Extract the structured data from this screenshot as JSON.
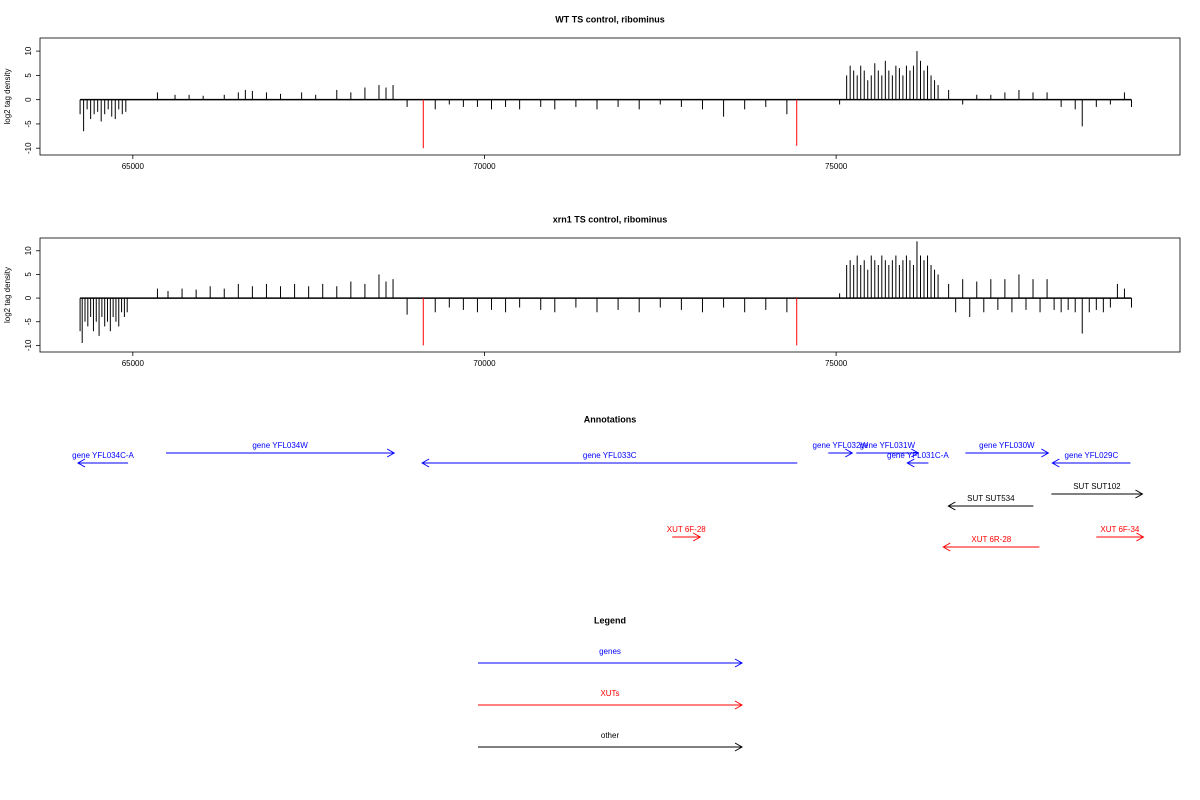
{
  "chart_data": [
    {
      "type": "spike",
      "title": "WT TS control, ribominus",
      "ylabel": "log2 tag density",
      "xlim": [
        63680,
        79890
      ],
      "ylim": [
        -11.4,
        12.7
      ],
      "xticks": [
        65000,
        70000,
        75000
      ],
      "yticks": [
        -10,
        -5,
        0,
        5,
        10
      ],
      "series": [
        {
          "color": "#000000",
          "x": [
            64250,
            64300,
            64350,
            64400,
            64450,
            64500,
            64550,
            64600,
            64650,
            64700,
            64750,
            64800,
            64850,
            64900,
            65350,
            65600,
            65800,
            66000,
            66300,
            66500,
            66600,
            66700,
            66900,
            67100,
            67400,
            67600,
            67900,
            68100,
            68300,
            68500,
            68600,
            68700,
            68900,
            69300,
            69500,
            69700,
            69900,
            70100,
            70300,
            70500,
            70800,
            71000,
            71300,
            71600,
            71900,
            72200,
            72500,
            72800,
            73100,
            73400,
            73700,
            74000,
            74300,
            75050,
            75150,
            75200,
            75250,
            75300,
            75350,
            75400,
            75450,
            75500,
            75550,
            75600,
            75650,
            75700,
            75750,
            75800,
            75850,
            75900,
            75950,
            76000,
            76050,
            76100,
            76150,
            76200,
            76250,
            76300,
            76350,
            76400,
            76450,
            76600,
            76800,
            77000,
            77200,
            77400,
            77600,
            77800,
            78000,
            78200,
            78400,
            78500,
            78700,
            78900,
            79100,
            79200
          ],
          "values": [
            -3,
            -6.5,
            -2,
            -4,
            -3,
            -2.5,
            -4.5,
            -3,
            -2,
            -3.5,
            -4,
            -2,
            -3,
            -2.5,
            1.5,
            1,
            1,
            0.8,
            1,
            1.5,
            2,
            1.8,
            1.5,
            1.2,
            1.5,
            1,
            2,
            1.5,
            2.5,
            3,
            2.5,
            3,
            -1.5,
            -2,
            -1,
            -1.5,
            -1.5,
            -2,
            -1.5,
            -2,
            -1.5,
            -2,
            -1.5,
            -2,
            -1.5,
            -2,
            -1,
            -1.5,
            -2,
            -3.5,
            -2,
            -1.5,
            -3,
            -1,
            5,
            7,
            6,
            5,
            7,
            6,
            4,
            5,
            7.5,
            6,
            5,
            8,
            6,
            5,
            7,
            6.5,
            5,
            7,
            6,
            7,
            10,
            8,
            6,
            7,
            5,
            4,
            3,
            2,
            -1,
            1,
            1,
            1.5,
            2,
            1.5,
            1.5,
            -1.5,
            -2,
            -5.5,
            -1.5,
            -1,
            1.5,
            -1.5
          ]
        },
        {
          "color": "#ff0000",
          "x": [
            69130,
            74440
          ],
          "values": [
            -10,
            -9.5
          ]
        }
      ]
    },
    {
      "type": "spike",
      "title": "xrn1 TS control, ribominus",
      "ylabel": "log2 tag density",
      "xlim": [
        63680,
        79890
      ],
      "ylim": [
        -11.4,
        12.7
      ],
      "xticks": [
        65000,
        70000,
        75000
      ],
      "yticks": [
        -10,
        -5,
        0,
        5,
        10
      ],
      "series": [
        {
          "color": "#000000",
          "x": [
            64250,
            64280,
            64320,
            64360,
            64400,
            64440,
            64480,
            64520,
            64560,
            64600,
            64640,
            64680,
            64720,
            64760,
            64800,
            64840,
            64880,
            64920,
            65350,
            65500,
            65700,
            65900,
            66100,
            66300,
            66500,
            66700,
            66900,
            67100,
            67300,
            67500,
            67700,
            67900,
            68100,
            68300,
            68500,
            68600,
            68700,
            68900,
            69300,
            69500,
            69700,
            69900,
            70100,
            70300,
            70500,
            70800,
            71000,
            71300,
            71600,
            71900,
            72200,
            72500,
            72800,
            73100,
            73400,
            73700,
            74000,
            74300,
            75050,
            75150,
            75200,
            75250,
            75300,
            75350,
            75400,
            75450,
            75500,
            75550,
            75600,
            75650,
            75700,
            75750,
            75800,
            75850,
            75900,
            75950,
            76000,
            76050,
            76100,
            76150,
            76200,
            76250,
            76300,
            76350,
            76400,
            76450,
            76600,
            76700,
            76800,
            76900,
            77000,
            77100,
            77200,
            77300,
            77400,
            77500,
            77600,
            77700,
            77800,
            77900,
            78000,
            78100,
            78200,
            78300,
            78400,
            78500,
            78600,
            78700,
            78800,
            78900,
            79000,
            79100,
            79200
          ],
          "values": [
            -7,
            -9.5,
            -5,
            -6,
            -4,
            -7,
            -5,
            -8,
            -4,
            -6,
            -5,
            -7,
            -4,
            -5,
            -6,
            -3,
            -4,
            -3,
            2,
            1.5,
            2,
            1.8,
            2.5,
            2,
            3,
            2.5,
            3,
            2.5,
            3,
            2.5,
            3,
            2.5,
            3.5,
            3,
            5,
            3.5,
            4,
            -3.5,
            -3,
            -2,
            -2.5,
            -3,
            -2.5,
            -3,
            -2,
            -2.5,
            -3,
            -2,
            -3,
            -2.5,
            -3,
            -2,
            -2.5,
            -3,
            -2,
            -3,
            -2.5,
            -3,
            1,
            7,
            8,
            7,
            9,
            7,
            8,
            6,
            9,
            8,
            7,
            9,
            8,
            7,
            8,
            9,
            7,
            8,
            9,
            8,
            7,
            12,
            9,
            8,
            9,
            7,
            6,
            5,
            3,
            -3,
            4,
            -4,
            3.5,
            -3,
            4,
            -2.5,
            4,
            -3,
            5,
            -2.5,
            4,
            -3,
            4,
            -2.5,
            -3,
            -2.5,
            -3,
            -7.5,
            -3,
            -2.5,
            -3,
            -2,
            3,
            2,
            -2
          ]
        },
        {
          "color": "#ff0000",
          "x": [
            69130,
            74440
          ],
          "values": [
            -10,
            -10
          ]
        }
      ]
    }
  ],
  "annotations": {
    "title": "Annotations",
    "features": [
      {
        "label": "gene YFL034C-A",
        "start": 64220,
        "end": 64932,
        "strand": "-",
        "group": 0
      },
      {
        "label": "gene YFL034W",
        "start": 65472,
        "end": 68716,
        "strand": "+",
        "group": 0
      },
      {
        "label": "gene YFL033C",
        "start": 69114,
        "end": 74448,
        "strand": "-",
        "group": 0
      },
      {
        "label": "gene YFL032W",
        "start": 74889,
        "end": 75230,
        "strand": "+",
        "group": 0
      },
      {
        "label": "gene YFL031W",
        "start": 75287,
        "end": 76169,
        "strand": "+",
        "group": 0
      },
      {
        "label": "gene YFL031C-A",
        "start": 76013,
        "end": 76312,
        "strand": "-",
        "group": 0
      },
      {
        "label": "gene YFL030W",
        "start": 76838,
        "end": 78018,
        "strand": "+",
        "group": 0
      },
      {
        "label": "gene YFL029C",
        "start": 78075,
        "end": 79185,
        "strand": "-",
        "group": 0
      },
      {
        "label": "SUT SUT534",
        "start": 76596,
        "end": 77805,
        "strand": "-",
        "group": 2
      },
      {
        "label": "SUT SUT102",
        "start": 78061,
        "end": 79356,
        "strand": "+",
        "group": 2
      },
      {
        "label": "XUT 6F-28",
        "start": 72670,
        "end": 73068,
        "strand": "+",
        "group": 1
      },
      {
        "label": "XUT 6R-28",
        "start": 76524,
        "end": 77890,
        "strand": "-",
        "group": 1
      },
      {
        "label": "XUT 6F-34",
        "start": 78700,
        "end": 79370,
        "strand": "+",
        "group": 1
      }
    ]
  },
  "legend": {
    "title": "Legend",
    "items": [
      {
        "label": "genes",
        "color": "#0000ff"
      },
      {
        "label": "XUTs",
        "color": "#ff0000"
      },
      {
        "label": "other",
        "color": "#000000"
      }
    ]
  }
}
